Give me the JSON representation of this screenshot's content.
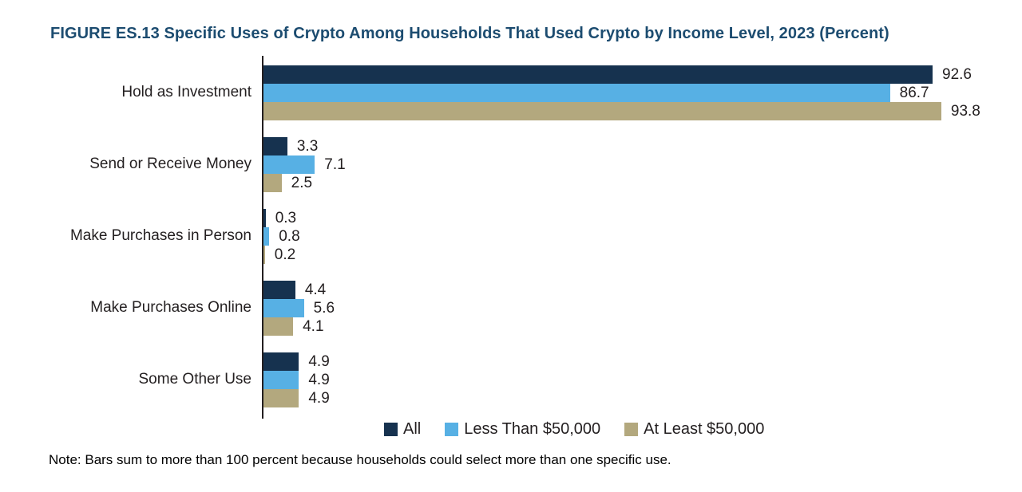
{
  "title": "FIGURE ES.13 Specific Uses of Crypto Among Households That Used Crypto by Income Level, 2023 (Percent)",
  "note": "Note: Bars sum to more than 100 percent because households could select more than one specific use.",
  "colors": {
    "title_text": "#1C4C70",
    "axis": "#231F20",
    "label_text": "#231F20",
    "series_all": "#16324F",
    "series_less_than_50k": "#57B0E4",
    "series_at_least_50k": "#B3A87E"
  },
  "chart_data": {
    "type": "bar",
    "orientation": "horizontal",
    "title": "FIGURE ES.13 Specific Uses of Crypto Among Households That Used Crypto by Income Level, 2023 (Percent)",
    "categories": [
      "Hold as Investment",
      "Send or Receive Money",
      "Make Purchases in Person",
      "Make Purchases Online",
      "Some Other Use"
    ],
    "series": [
      {
        "name": "All",
        "color": "#16324F",
        "values": [
          92.6,
          3.3,
          0.3,
          4.4,
          4.9
        ]
      },
      {
        "name": "Less Than $50,000",
        "color": "#57B0E4",
        "values": [
          86.7,
          7.1,
          0.8,
          5.6,
          4.9
        ]
      },
      {
        "name": "At Least $50,000",
        "color": "#B3A87E",
        "values": [
          93.8,
          2.5,
          0.2,
          4.1,
          4.9
        ]
      }
    ],
    "value_labels": true,
    "xlabel": "",
    "ylabel": "",
    "xlim": [
      0,
      95
    ],
    "grid": false,
    "legend_position": "bottom"
  }
}
